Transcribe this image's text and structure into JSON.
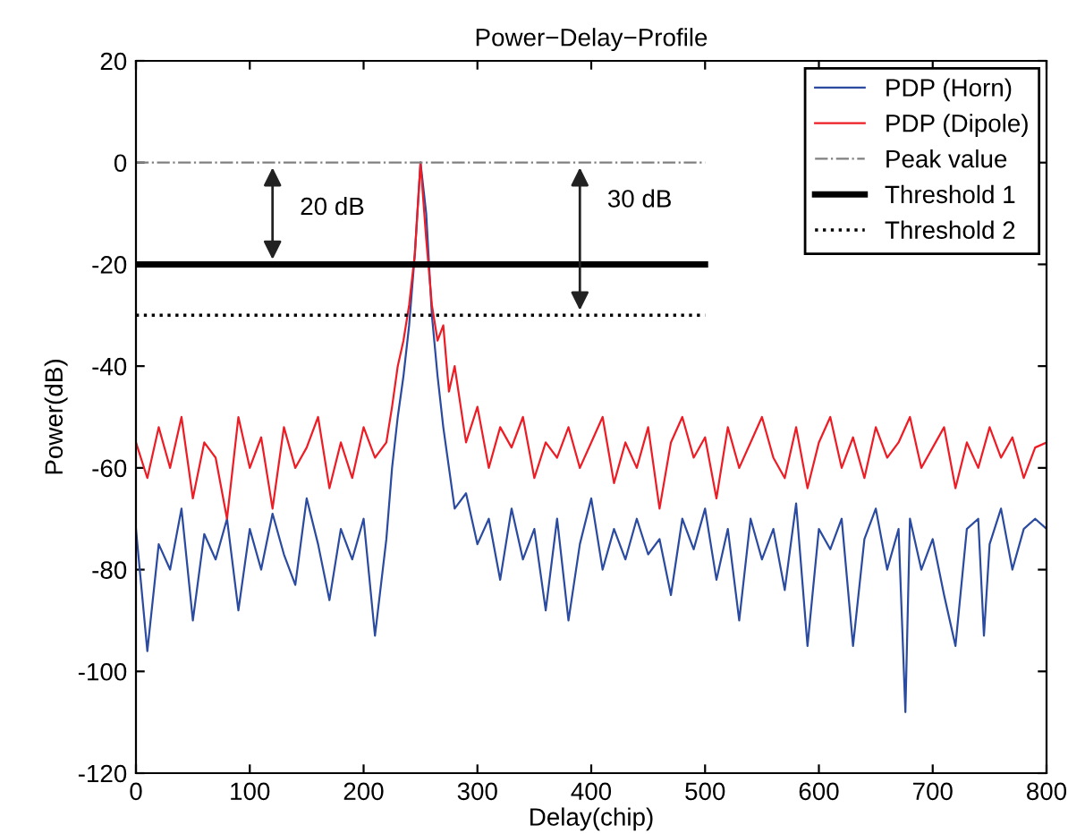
{
  "chart_data": {
    "type": "line",
    "title": "Power−Delay−Profile",
    "xlabel": "Delay(chip)",
    "ylabel": "Power(dB)",
    "xlim": [
      0,
      800
    ],
    "ylim": [
      -120,
      20
    ],
    "xticks": [
      0,
      100,
      200,
      300,
      400,
      500,
      600,
      700,
      800
    ],
    "yticks": [
      -120,
      -100,
      -80,
      -60,
      -40,
      -20,
      0,
      20
    ],
    "legend": "top right",
    "grid": false,
    "series": [
      {
        "name": "PDP (Horn)",
        "color": "#2b4ba0",
        "line_style": "solid",
        "x": [
          0,
          10,
          20,
          30,
          40,
          50,
          60,
          70,
          80,
          90,
          100,
          110,
          120,
          130,
          140,
          150,
          160,
          170,
          180,
          190,
          200,
          210,
          220,
          225,
          230,
          235,
          240,
          245,
          250,
          255,
          260,
          265,
          270,
          275,
          280,
          290,
          300,
          310,
          320,
          330,
          340,
          350,
          360,
          370,
          380,
          390,
          400,
          410,
          420,
          430,
          440,
          450,
          460,
          470,
          480,
          490,
          500,
          510,
          520,
          530,
          540,
          550,
          560,
          570,
          580,
          590,
          600,
          610,
          620,
          630,
          640,
          650,
          660,
          670,
          676,
          680,
          690,
          700,
          710,
          720,
          730,
          740,
          745,
          750,
          760,
          770,
          780,
          790,
          800
        ],
        "values": [
          -72,
          -96,
          -75,
          -80,
          -68,
          -90,
          -73,
          -78,
          -70,
          -88,
          -72,
          -80,
          -69,
          -77,
          -83,
          -66,
          -75,
          -86,
          -72,
          -78,
          -70,
          -93,
          -74,
          -60,
          -50,
          -42,
          -32,
          -18,
          0,
          -10,
          -30,
          -42,
          -52,
          -60,
          -68,
          -65,
          -75,
          -70,
          -82,
          -68,
          -78,
          -72,
          -88,
          -70,
          -90,
          -75,
          -66,
          -80,
          -72,
          -78,
          -70,
          -77,
          -74,
          -85,
          -70,
          -76,
          -68,
          -82,
          -72,
          -90,
          -70,
          -78,
          -72,
          -84,
          -67,
          -95,
          -72,
          -76,
          -70,
          -95,
          -74,
          -68,
          -80,
          -72,
          -108,
          -70,
          -80,
          -74,
          -85,
          -95,
          -72,
          -70,
          -93,
          -75,
          -68,
          -80,
          -72,
          -70,
          -72
        ]
      },
      {
        "name": "PDP (Dipole)",
        "color": "#ee1c25",
        "line_style": "solid",
        "x": [
          0,
          10,
          20,
          30,
          40,
          50,
          60,
          70,
          80,
          90,
          100,
          110,
          120,
          130,
          140,
          150,
          160,
          170,
          180,
          190,
          200,
          210,
          220,
          225,
          230,
          235,
          240,
          245,
          250,
          255,
          260,
          265,
          270,
          275,
          280,
          290,
          300,
          310,
          320,
          330,
          340,
          350,
          360,
          370,
          380,
          390,
          400,
          410,
          420,
          430,
          440,
          450,
          460,
          470,
          480,
          490,
          500,
          510,
          520,
          530,
          540,
          550,
          560,
          570,
          580,
          590,
          600,
          610,
          620,
          630,
          640,
          650,
          660,
          670,
          680,
          690,
          700,
          710,
          720,
          730,
          740,
          750,
          760,
          770,
          780,
          790,
          800
        ],
        "values": [
          -55,
          -62,
          -52,
          -60,
          -50,
          -66,
          -55,
          -58,
          -70,
          -50,
          -60,
          -54,
          -68,
          -52,
          -60,
          -56,
          -50,
          -64,
          -55,
          -62,
          -52,
          -58,
          -55,
          -48,
          -40,
          -35,
          -28,
          -18,
          0,
          -15,
          -28,
          -35,
          -32,
          -45,
          -40,
          -55,
          -48,
          -60,
          -52,
          -56,
          -50,
          -62,
          -55,
          -58,
          -52,
          -60,
          -55,
          -50,
          -63,
          -55,
          -60,
          -52,
          -68,
          -55,
          -50,
          -58,
          -54,
          -66,
          -52,
          -60,
          -55,
          -50,
          -58,
          -62,
          -52,
          -64,
          -55,
          -50,
          -60,
          -54,
          -62,
          -52,
          -58,
          -55,
          -50,
          -60,
          -56,
          -52,
          -64,
          -55,
          -60,
          -52,
          -58,
          -54,
          -62,
          -56,
          -55
        ]
      },
      {
        "name": "Peak value",
        "color": "#808080",
        "line_style": "dashdot",
        "x": [
          0,
          500
        ],
        "values": [
          0,
          0
        ]
      },
      {
        "name": "Threshold 1",
        "color": "#000000",
        "line_style": "solid",
        "x": [
          0,
          500
        ],
        "values": [
          -20,
          -20
        ]
      },
      {
        "name": "Threshold 2",
        "color": "#000000",
        "line_style": "dotted",
        "x": [
          0,
          500
        ],
        "values": [
          -30,
          -30
        ]
      }
    ],
    "annotations": [
      "20 dB",
      "30 dB"
    ]
  }
}
